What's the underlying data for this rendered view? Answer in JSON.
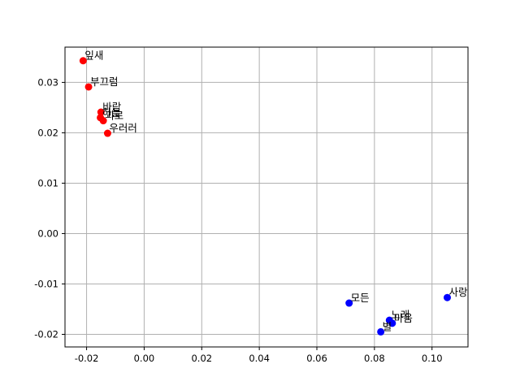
{
  "chart_data": {
    "type": "scatter",
    "title": "",
    "xlabel": "",
    "ylabel": "",
    "xlim": [
      -0.0275,
      0.1125
    ],
    "ylim": [
      -0.0225,
      0.037
    ],
    "grid": true,
    "x_ticks": [
      -0.02,
      0.0,
      0.02,
      0.04,
      0.06,
      0.08,
      0.1
    ],
    "x_tick_labels": [
      "-0.02",
      "0.00",
      "0.02",
      "0.04",
      "0.06",
      "0.08",
      "0.10"
    ],
    "y_ticks": [
      -0.02,
      -0.01,
      0.0,
      0.01,
      0.02,
      0.03
    ],
    "y_tick_labels": [
      "-0.02",
      "-0.01",
      "0.00",
      "0.01",
      "0.02",
      "0.03"
    ],
    "series": [
      {
        "color": "#ff0000",
        "points": [
          {
            "x": -0.0212,
            "y": 0.0343,
            "label": "잎새"
          },
          {
            "x": -0.0193,
            "y": 0.0291,
            "label": "부끄럼"
          },
          {
            "x": -0.015,
            "y": 0.0241,
            "label": "바람"
          },
          {
            "x": -0.0152,
            "y": 0.023,
            "label": "하늘"
          },
          {
            "x": -0.0142,
            "y": 0.0224,
            "label": "괴로"
          },
          {
            "x": -0.0127,
            "y": 0.0199,
            "label": "우러러"
          }
        ]
      },
      {
        "color": "#0000ff",
        "points": [
          {
            "x": 0.0712,
            "y": -0.0138,
            "label": "모든"
          },
          {
            "x": 0.1053,
            "y": -0.0127,
            "label": "사랑"
          },
          {
            "x": 0.0852,
            "y": -0.0172,
            "label": "노래"
          },
          {
            "x": 0.0862,
            "y": -0.0178,
            "label": "마음"
          },
          {
            "x": 0.0822,
            "y": -0.0195,
            "label": "별"
          }
        ]
      }
    ]
  }
}
